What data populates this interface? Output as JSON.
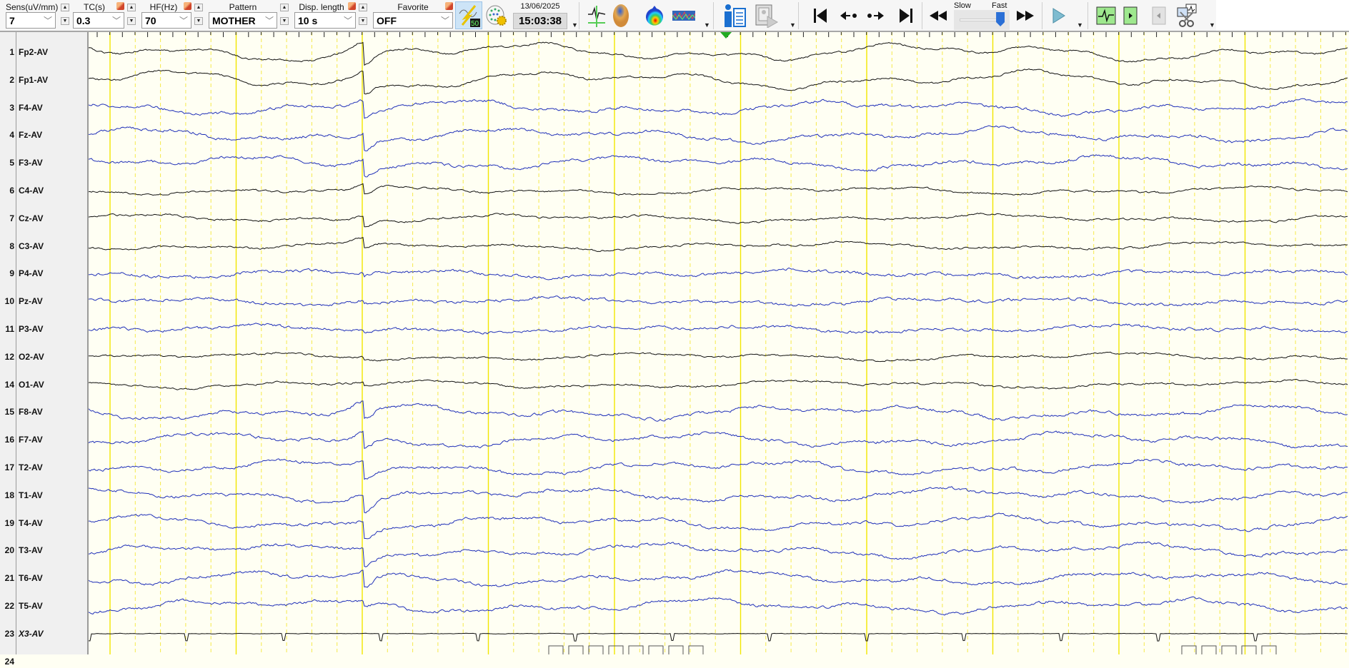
{
  "toolbar": {
    "sens": {
      "label": "Sens(uV/mm)",
      "value": "7"
    },
    "tc": {
      "label": "TC(s)",
      "value": "0.3"
    },
    "hf": {
      "label": "HF(Hz)",
      "value": "70"
    },
    "pattern": {
      "label": "Pattern",
      "value": "MOTHER"
    },
    "disp": {
      "label": "Disp. length",
      "value": "10 s"
    },
    "favorite": {
      "label": "Favorite",
      "value": "OFF"
    },
    "filter_badge": "50",
    "date": "13/06/2025",
    "time": "15:03:38",
    "speed_slow": "Slow",
    "speed_fast": "Fast",
    "speed_level": 0.95
  },
  "colors": {
    "black_trace": "#111111",
    "blue_trace": "#1f2fb8",
    "grid_major": "#f2e600",
    "grid_minor": "#f5e94a",
    "background": "#fffff3",
    "marker": "#22aa22"
  },
  "channels": [
    {
      "n": "1",
      "name": "Fp2-AV",
      "color": "black"
    },
    {
      "n": "2",
      "name": "Fp1-AV",
      "color": "black"
    },
    {
      "n": "3",
      "name": "F4-AV",
      "color": "blue"
    },
    {
      "n": "4",
      "name": "Fz-AV",
      "color": "blue"
    },
    {
      "n": "5",
      "name": "F3-AV",
      "color": "blue"
    },
    {
      "n": "6",
      "name": "C4-AV",
      "color": "black"
    },
    {
      "n": "7",
      "name": "Cz-AV",
      "color": "black"
    },
    {
      "n": "8",
      "name": "C3-AV",
      "color": "black"
    },
    {
      "n": "9",
      "name": "P4-AV",
      "color": "blue"
    },
    {
      "n": "10",
      "name": "Pz-AV",
      "color": "blue"
    },
    {
      "n": "11",
      "name": "P3-AV",
      "color": "blue"
    },
    {
      "n": "12",
      "name": "O2-AV",
      "color": "black"
    },
    {
      "n": "14",
      "name": "O1-AV",
      "color": "black"
    },
    {
      "n": "15",
      "name": "F8-AV",
      "color": "blue"
    },
    {
      "n": "16",
      "name": "F7-AV",
      "color": "blue"
    },
    {
      "n": "17",
      "name": "T2-AV",
      "color": "blue"
    },
    {
      "n": "18",
      "name": "T1-AV",
      "color": "blue"
    },
    {
      "n": "19",
      "name": "T4-AV",
      "color": "blue"
    },
    {
      "n": "20",
      "name": "T3-AV",
      "color": "blue"
    },
    {
      "n": "21",
      "name": "T6-AV",
      "color": "blue"
    },
    {
      "n": "22",
      "name": "T5-AV",
      "color": "blue"
    },
    {
      "n": "23",
      "name": "X3-AV",
      "color": "black",
      "italic": true
    },
    {
      "n": "24",
      "name": "",
      "color": "black"
    }
  ],
  "display_seconds": 10
}
